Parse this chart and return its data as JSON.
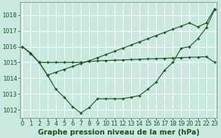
{
  "background_color": "#c8e8e0",
  "grid_color": "#b0d8d0",
  "line_color": "#1a5218",
  "xlabel": "Graphe pression niveau de la mer (hPa)",
  "xlabel_fontsize": 7.5,
  "tick_fontsize": 6.0,
  "ylim": [
    1011.5,
    1018.8
  ],
  "xlim": [
    -0.3,
    23.3
  ],
  "yticks": [
    1012,
    1013,
    1014,
    1015,
    1016,
    1017,
    1018
  ],
  "xticks": [
    0,
    1,
    2,
    3,
    4,
    5,
    6,
    7,
    8,
    9,
    10,
    11,
    12,
    13,
    14,
    15,
    16,
    17,
    18,
    19,
    20,
    21,
    22,
    23
  ],
  "seriesA_x": [
    0,
    1,
    2,
    3,
    4,
    5,
    6,
    7,
    8,
    9,
    10,
    11,
    12,
    13,
    14,
    15,
    16,
    17,
    18,
    19,
    20,
    21,
    22,
    23
  ],
  "seriesA_y": [
    1016.0,
    1015.6,
    1015.0,
    1014.2,
    1013.3,
    1012.8,
    1012.2,
    1011.8,
    1012.15,
    1012.7,
    1012.7,
    1012.7,
    1012.7,
    1012.8,
    1012.9,
    1013.3,
    1013.75,
    1014.5,
    1015.0,
    1015.9,
    1016.0,
    1016.5,
    1017.2,
    1018.35
  ],
  "seriesB_x": [
    0,
    1,
    2,
    3,
    4,
    5,
    6,
    7,
    8,
    9,
    10,
    11,
    12,
    13,
    14,
    15,
    16,
    17,
    18,
    19,
    20,
    21,
    22,
    23
  ],
  "seriesB_y": [
    1016.0,
    1015.55,
    1015.0,
    1015.0,
    1015.0,
    1015.0,
    1015.0,
    1015.0,
    1015.05,
    1015.1,
    1015.12,
    1015.14,
    1015.16,
    1015.18,
    1015.2,
    1015.22,
    1015.24,
    1015.26,
    1015.28,
    1015.3,
    1015.32,
    1015.34,
    1015.36,
    1015.0
  ],
  "seriesC_x": [
    2,
    3,
    4,
    5,
    6,
    7,
    8,
    9,
    10,
    11,
    12,
    13,
    14,
    15,
    16,
    17,
    18,
    19,
    20,
    21,
    22,
    23
  ],
  "seriesC_y": [
    1015.0,
    1014.2,
    1014.38,
    1014.56,
    1014.75,
    1014.93,
    1015.11,
    1015.3,
    1015.5,
    1015.7,
    1015.9,
    1016.1,
    1016.3,
    1016.5,
    1016.7,
    1016.9,
    1017.1,
    1017.3,
    1017.5,
    1017.25,
    1017.5,
    1018.4
  ]
}
